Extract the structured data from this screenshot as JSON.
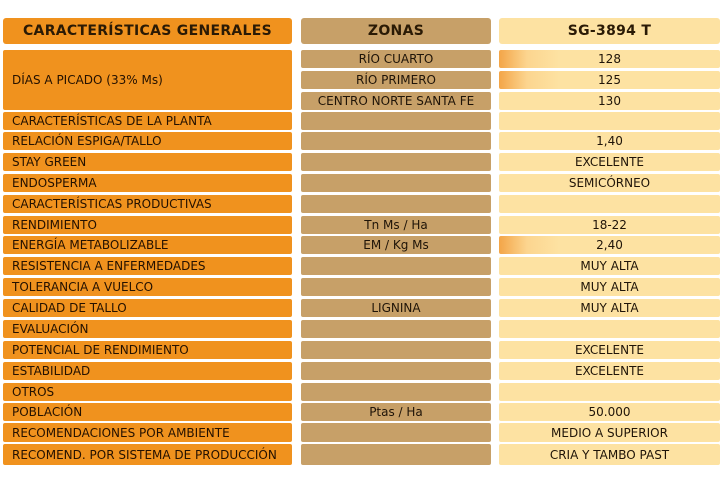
{
  "headers": {
    "col1": "CARACTERÍSTICAS GENERALES",
    "col2": "ZONAS",
    "col3": "SG-3894 T"
  },
  "dias_label": "DÍAS A PICADO (33% Ms)",
  "zonas": [
    {
      "zona": "RÍO CUARTO",
      "valor": "128"
    },
    {
      "zona": "RÍO PRIMERO",
      "valor": "125"
    },
    {
      "zona": "CENTRO NORTE SANTA FE",
      "valor": "130"
    }
  ],
  "rows": [
    {
      "label": "CARACTERÍSTICAS DE LA PLANTA",
      "zona": "",
      "valor": ""
    },
    {
      "label": "RELACIÓN ESPIGA/TALLO",
      "zona": "",
      "valor": "1,40"
    },
    {
      "label": "STAY GREEN",
      "zona": "",
      "valor": "EXCELENTE"
    },
    {
      "label": "ENDOSPERMA",
      "zona": "",
      "valor": "SEMICÓRNEO"
    },
    {
      "label": "CARACTERÍSTICAS PRODUCTIVAS",
      "zona": "",
      "valor": ""
    },
    {
      "label": "RENDIMIENTO",
      "zona": "Tn Ms / Ha",
      "valor": "18-22"
    },
    {
      "label": "ENERGÍA METABOLIZABLE",
      "zona": "EM / Kg Ms",
      "valor": "2,40"
    },
    {
      "label": "RESISTENCIA A ENFERMEDADES",
      "zona": "",
      "valor": "MUY ALTA"
    },
    {
      "label": "TOLERANCIA A VUELCO",
      "zona": "",
      "valor": "MUY ALTA"
    },
    {
      "label": "CALIDAD DE TALLO",
      "zona": "LIGNINA",
      "valor": "MUY ALTA"
    },
    {
      "label": "EVALUACIÓN",
      "zona": "",
      "valor": ""
    },
    {
      "label": "POTENCIAL DE RENDIMIENTO",
      "zona": "",
      "valor": "EXCELENTE"
    },
    {
      "label": "ESTABILIDAD",
      "zona": "",
      "valor": "EXCELENTE"
    },
    {
      "label": "OTROS",
      "zona": "",
      "valor": ""
    },
    {
      "label": "POBLACIÓN",
      "zona": "Ptas / Ha",
      "valor": "50.000"
    },
    {
      "label": "RECOMENDACIONES POR AMBIENTE",
      "zona": "",
      "valor": "MEDIO A SUPERIOR"
    },
    {
      "label": "RECOMEND. POR SISTEMA DE PRODUCCIÓN",
      "zona": "",
      "valor": "CRIA Y TAMBO PAST"
    }
  ],
  "colors": {
    "label_column": "#f0921e",
    "zone_column": "#c7a068",
    "value_column": "#fde2a2"
  }
}
